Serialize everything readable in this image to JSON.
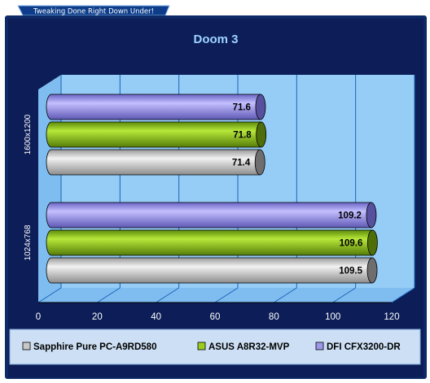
{
  "banner": {
    "text": "Tweaking Done Right Down Under!"
  },
  "colors": {
    "frame": "#0d2a66",
    "background": "#0c1d58",
    "plot_area": "#96cdf7",
    "legend_bg": "#ccdff4",
    "gridline": "#1b63b8",
    "title": "#9fd4ff"
  },
  "chart_data": {
    "type": "bar",
    "orientation": "horizontal",
    "title": "Doom 3",
    "xlabel": "",
    "ylabel": "",
    "xlim": [
      0,
      120
    ],
    "ticks": [
      "0",
      "20",
      "40",
      "60",
      "80",
      "100",
      "120"
    ],
    "grid": true,
    "legend_position": "bottom",
    "categories": [
      "1600x1200",
      "1024x768"
    ],
    "series": [
      {
        "name": "Sapphire Pure PC-A9RD580",
        "color": "#c8c8c8",
        "values": [
          71.4,
          109.5
        ],
        "labels": [
          "71.4",
          "109.5"
        ]
      },
      {
        "name": "ASUS A8R32-MVP",
        "color": "#9ccd1e",
        "values": [
          71.8,
          109.6
        ],
        "labels": [
          "71.8",
          "109.6"
        ]
      },
      {
        "name": "DFI CFX3200-DR",
        "color": "#9e98ec",
        "values": [
          71.6,
          109.2
        ],
        "labels": [
          "71.6",
          "109.2"
        ]
      }
    ]
  }
}
